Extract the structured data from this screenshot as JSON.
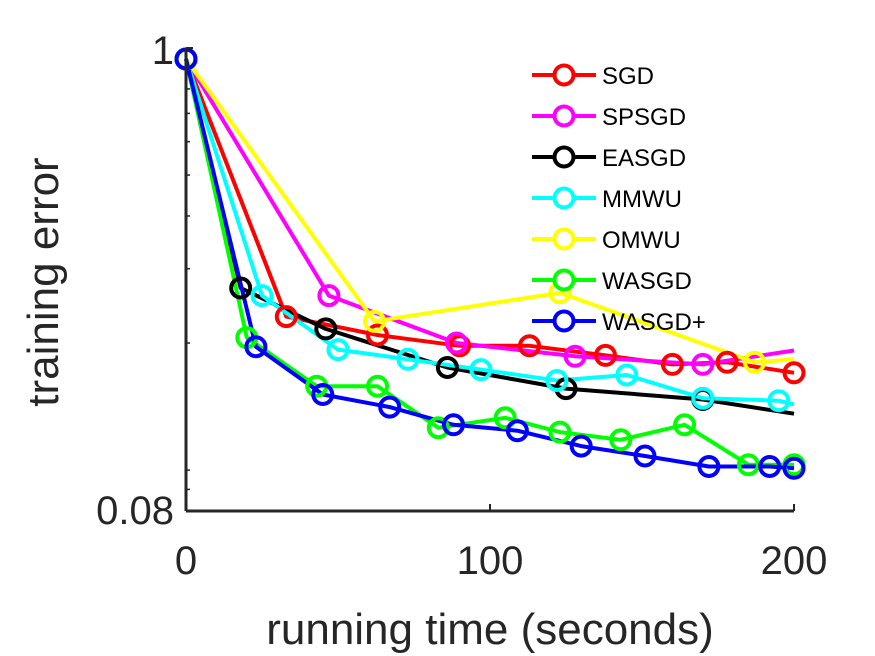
{
  "chart_data": {
    "type": "line",
    "title": "",
    "xlabel": "running time (seconds)",
    "ylabel": "training error",
    "xlim": [
      0,
      200
    ],
    "ylim": [
      0.08,
      1
    ],
    "yscale": "log",
    "xticks": [
      0,
      100,
      200
    ],
    "xtick_labels": [
      "0",
      "100",
      "200"
    ],
    "yticks": [
      0.08,
      1
    ],
    "ytick_labels": [
      "0.08",
      "1"
    ],
    "grid": false,
    "legend_position": "top-right",
    "series": [
      {
        "name": "SGD",
        "color": "#ff0000",
        "x": [
          0,
          33,
          63,
          90,
          113,
          138,
          160,
          178,
          200
        ],
        "y": [
          0.942,
          0.231,
          0.209,
          0.197,
          0.197,
          0.187,
          0.178,
          0.18,
          0.17
        ]
      },
      {
        "name": "SPSGD",
        "color": "#ff00ff",
        "markers": [
          0,
          47,
          89,
          128,
          170
        ],
        "x": [
          0,
          47,
          89,
          128,
          170,
          200
        ],
        "y": [
          0.942,
          0.259,
          0.2,
          0.186,
          0.178,
          0.192
        ]
      },
      {
        "name": "EASGD",
        "color": "#000000",
        "markers": [
          0,
          18,
          46,
          86,
          125,
          170
        ],
        "x": [
          0,
          18,
          46,
          86,
          125,
          170,
          200
        ],
        "y": [
          0.942,
          0.27,
          0.216,
          0.175,
          0.156,
          0.147,
          0.136
        ]
      },
      {
        "name": "MMWU",
        "color": "#00ffff",
        "markers": [
          0,
          25,
          50,
          73,
          97,
          122,
          145,
          170,
          195
        ],
        "x": [
          0,
          25,
          50,
          73,
          97,
          122,
          145,
          170,
          195,
          200
        ],
        "y": [
          0.942,
          0.259,
          0.193,
          0.183,
          0.173,
          0.163,
          0.168,
          0.148,
          0.146,
          0.143
        ]
      },
      {
        "name": "OMWU",
        "color": "#ffff00",
        "markers": [
          0,
          62,
          123,
          187
        ],
        "x": [
          0,
          62,
          123,
          187,
          200
        ],
        "y": [
          0.942,
          0.225,
          0.263,
          0.18,
          0.183
        ]
      },
      {
        "name": "WASGD",
        "color": "#00ff00",
        "x": [
          0,
          20,
          43,
          63,
          83,
          105,
          123,
          143,
          164,
          185,
          200
        ],
        "y": [
          0.942,
          0.206,
          0.158,
          0.158,
          0.126,
          0.133,
          0.123,
          0.118,
          0.128,
          0.103,
          0.103
        ]
      },
      {
        "name": "WASGD+",
        "color": "#0000ff",
        "x": [
          0,
          23,
          45,
          67,
          88,
          109,
          130,
          151,
          172,
          192,
          200
        ],
        "y": [
          0.942,
          0.196,
          0.151,
          0.141,
          0.128,
          0.124,
          0.114,
          0.108,
          0.102,
          0.102,
          0.101
        ]
      }
    ]
  }
}
